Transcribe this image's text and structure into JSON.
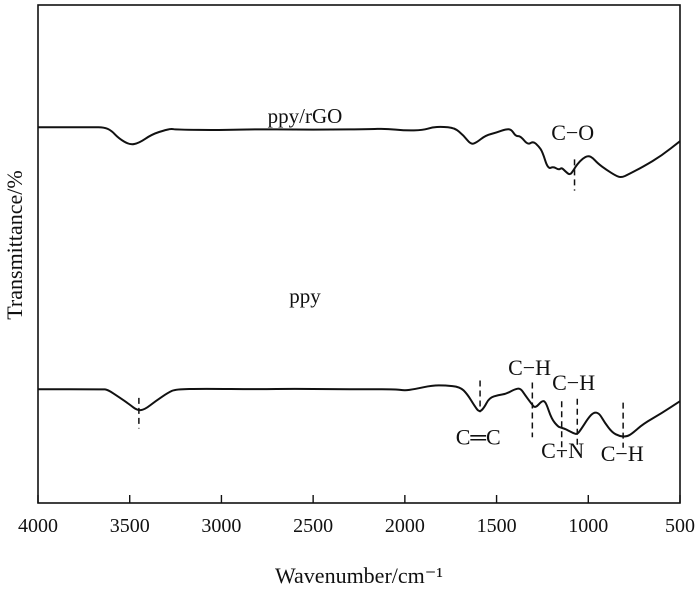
{
  "chart_data": {
    "type": "line",
    "title": "",
    "xlabel": "Wavenumber/cm⁻¹",
    "ylabel": "Transmittance/%",
    "xlim": [
      4000,
      500
    ],
    "x_reversed": true,
    "xticks": [
      4000,
      3500,
      3000,
      2500,
      2000,
      1500,
      1000,
      500
    ],
    "yticks_shown": false,
    "grid": false,
    "legend": "none",
    "series": [
      {
        "name": "ppy/rGO",
        "points": [
          [
            4000,
            37
          ],
          [
            3700,
            37
          ],
          [
            3640,
            37
          ],
          [
            3600,
            30
          ],
          [
            3560,
            14
          ],
          [
            3500,
            0
          ],
          [
            3450,
            4
          ],
          [
            3380,
            22
          ],
          [
            3300,
            32
          ],
          [
            3270,
            34
          ],
          [
            3250,
            32
          ],
          [
            3000,
            31
          ],
          [
            2800,
            33
          ],
          [
            2600,
            32
          ],
          [
            2400,
            32
          ],
          [
            2200,
            33
          ],
          [
            2100,
            34
          ],
          [
            2000,
            30
          ],
          [
            1900,
            31
          ],
          [
            1850,
            37
          ],
          [
            1800,
            38
          ],
          [
            1730,
            36
          ],
          [
            1680,
            20
          ],
          [
            1640,
            1
          ],
          [
            1610,
            5
          ],
          [
            1560,
            20
          ],
          [
            1500,
            26
          ],
          [
            1450,
            33
          ],
          [
            1420,
            33
          ],
          [
            1395,
            18
          ],
          [
            1370,
            19
          ],
          [
            1330,
            0
          ],
          [
            1300,
            8
          ],
          [
            1270,
            -3
          ],
          [
            1250,
            -14
          ],
          [
            1220,
            -50
          ],
          [
            1190,
            -45
          ],
          [
            1160,
            -52
          ],
          [
            1145,
            -47
          ],
          [
            1125,
            -55
          ],
          [
            1100,
            -63
          ],
          [
            1080,
            -52
          ],
          [
            1060,
            -40
          ],
          [
            1030,
            -28
          ],
          [
            1000,
            -22
          ],
          [
            975,
            -27
          ],
          [
            950,
            -38
          ],
          [
            900,
            -52
          ],
          [
            850,
            -64
          ],
          [
            820,
            -68
          ],
          [
            780,
            -61
          ],
          [
            700,
            -45
          ],
          [
            600,
            -22
          ],
          [
            500,
            8
          ]
        ]
      },
      {
        "name": "ppy",
        "points": [
          [
            4000,
            -140
          ],
          [
            3650,
            -140
          ],
          [
            3620,
            -141
          ],
          [
            3560,
            -156
          ],
          [
            3500,
            -172
          ],
          [
            3460,
            -184
          ],
          [
            3420,
            -183
          ],
          [
            3360,
            -165
          ],
          [
            3290,
            -147
          ],
          [
            3250,
            -140
          ],
          [
            3100,
            -139
          ],
          [
            2800,
            -140
          ],
          [
            2600,
            -139
          ],
          [
            2400,
            -140
          ],
          [
            2200,
            -140
          ],
          [
            2050,
            -140
          ],
          [
            2000,
            -143
          ],
          [
            1950,
            -140
          ],
          [
            1850,
            -132
          ],
          [
            1780,
            -132
          ],
          [
            1700,
            -135
          ],
          [
            1660,
            -150
          ],
          [
            1620,
            -175
          ],
          [
            1595,
            -188
          ],
          [
            1570,
            -180
          ],
          [
            1540,
            -158
          ],
          [
            1490,
            -152
          ],
          [
            1450,
            -150
          ],
          [
            1400,
            -140
          ],
          [
            1370,
            -138
          ],
          [
            1345,
            -152
          ],
          [
            1310,
            -170
          ],
          [
            1290,
            -180
          ],
          [
            1250,
            -163
          ],
          [
            1230,
            -168
          ],
          [
            1200,
            -202
          ],
          [
            1165,
            -218
          ],
          [
            1150,
            -220
          ],
          [
            1130,
            -222
          ],
          [
            1110,
            -226
          ],
          [
            1080,
            -232
          ],
          [
            1060,
            -234
          ],
          [
            1040,
            -224
          ],
          [
            1000,
            -200
          ],
          [
            970,
            -188
          ],
          [
            940,
            -190
          ],
          [
            910,
            -210
          ],
          [
            870,
            -230
          ],
          [
            830,
            -238
          ],
          [
            790,
            -239
          ],
          [
            760,
            -232
          ],
          [
            700,
            -212
          ],
          [
            600,
            -190
          ],
          [
            500,
            -165
          ]
        ]
      }
    ],
    "annotations": [
      {
        "label": "C−O",
        "x": 1075,
        "from_y": -30,
        "to_y": -95,
        "label_x": 1085,
        "label_y": 10,
        "series": "ppy/rGO"
      },
      {
        "label": "C═C",
        "x": 1590,
        "from_y": -122,
        "to_y": -188,
        "label_x": 1600,
        "label_y": -255,
        "series": "ppy"
      },
      {
        "label": "C−H",
        "x": 1305,
        "from_y": -126,
        "to_y": -240,
        "label_x": 1320,
        "label_y": -110,
        "series": "ppy"
      },
      {
        "label": "C−H",
        "x": 1060,
        "from_y": -160,
        "to_y": -262,
        "label_x": 1080,
        "label_y": -142,
        "series": "ppy"
      },
      {
        "label": "C−N",
        "x": 1145,
        "from_y": -165,
        "to_y": -285,
        "label_x": 1140,
        "label_y": -283,
        "series": "ppy"
      },
      {
        "label": "C−H",
        "x": 810,
        "from_y": -168,
        "to_y": -262,
        "label_x": 815,
        "label_y": -290,
        "series": "ppy"
      },
      {
        "label": "",
        "x": 3450,
        "from_y": -158,
        "to_y": -222,
        "series": "ppy"
      }
    ]
  }
}
